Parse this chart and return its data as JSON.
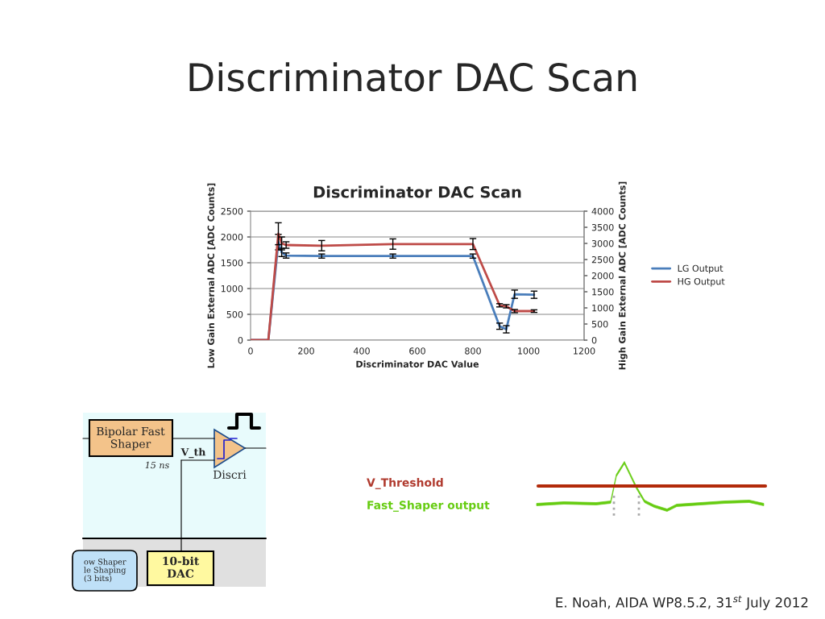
{
  "chart_data": {
    "type": "line",
    "title": "Discriminator DAC Scan",
    "subtitle": "Discriminator DAC Scan",
    "xlabel": "Discriminator DAC Value",
    "ylabel": "Low Gain External ADC [ADC Counts]",
    "y2label": "High Gain External ADC [ADC Counts]",
    "x": [
      0,
      64,
      100,
      112,
      128,
      256,
      512,
      800,
      896,
      920,
      950,
      1020
    ],
    "series": [
      {
        "name": "LG Output",
        "color": "#4a7ebb",
        "values": [
          0,
          0,
          1900,
          1700,
          1640,
          1630,
          1630,
          1630,
          270,
          210,
          890,
          880
        ],
        "errors": [
          null,
          null,
          150,
          80,
          50,
          40,
          40,
          40,
          60,
          70,
          80,
          70
        ]
      },
      {
        "name": "HG Output",
        "color": "#be4b48",
        "axis": "y2",
        "values": [
          0,
          0,
          3300,
          3000,
          2950,
          2930,
          2980,
          2980,
          1080,
          1050,
          900,
          900
        ],
        "errors": [
          null,
          null,
          340,
          200,
          100,
          160,
          160,
          170,
          50,
          50,
          50,
          40
        ]
      }
    ],
    "xlim": [
      0,
      1200
    ],
    "xticks": [
      0,
      200,
      400,
      600,
      800,
      1000,
      1200
    ],
    "ylim": [
      0,
      2500
    ],
    "yticks": [
      0,
      500,
      1000,
      1500,
      2000,
      2500
    ],
    "y2lim": [
      0,
      4000
    ],
    "y2ticks": [
      0,
      500,
      1000,
      1500,
      2000,
      2500,
      3000,
      3500,
      4000
    ],
    "grid": "y",
    "legend": "right",
    "marker": "none",
    "line_style": "solid",
    "annotations": [
      "E. Noah, AIDA WP8.5.2, 31$^{st}$ July 2012",
      "Bipolar Fast\nShaper",
      "15 ns",
      "V_th",
      "Discri",
      "10-bit\nDAC",
      "ow Shaper\nle Shaping\n(3 bits)",
      "V_Threshold",
      "Fast_Shaper output"
    ]
  }
}
